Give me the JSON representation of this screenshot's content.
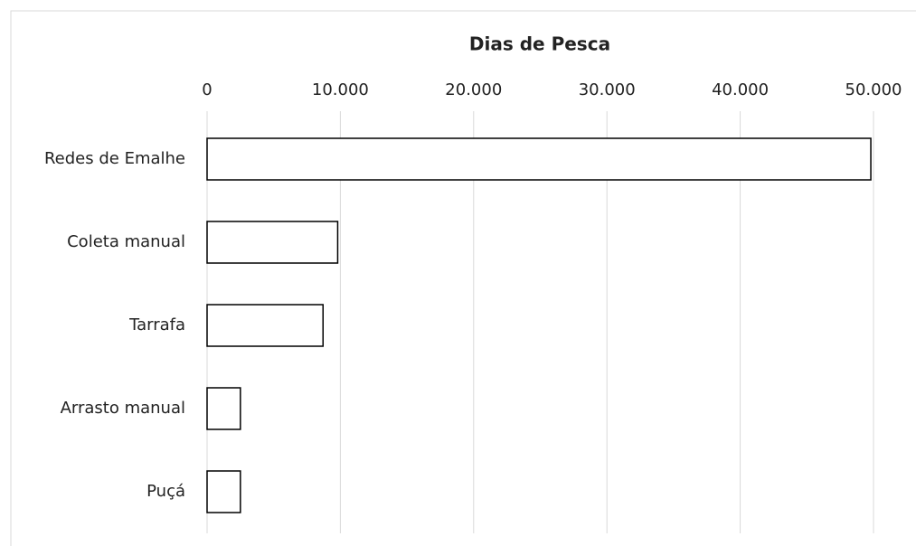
{
  "chart_data": {
    "type": "bar",
    "orientation": "horizontal",
    "title": "Dias de Pesca",
    "categories": [
      "Redes de Emalhe",
      "Coleta manual",
      "Tarrafa",
      "Arrasto manual",
      "Puçá"
    ],
    "values": [
      49800,
      9800,
      8700,
      2500,
      2500
    ],
    "color": "#ffffff",
    "xlim": [
      0,
      50000
    ],
    "xticks": [
      0,
      {
        "value": 10000,
        "label": "10.000"
      },
      {
        "value": 20000,
        "label": "20.000"
      },
      {
        "value": 30000,
        "label": "30.000"
      },
      {
        "value": 40000,
        "label": "40.000"
      },
      {
        "value": 50000,
        "label": "50.000"
      }
    ],
    "grid": true
  }
}
